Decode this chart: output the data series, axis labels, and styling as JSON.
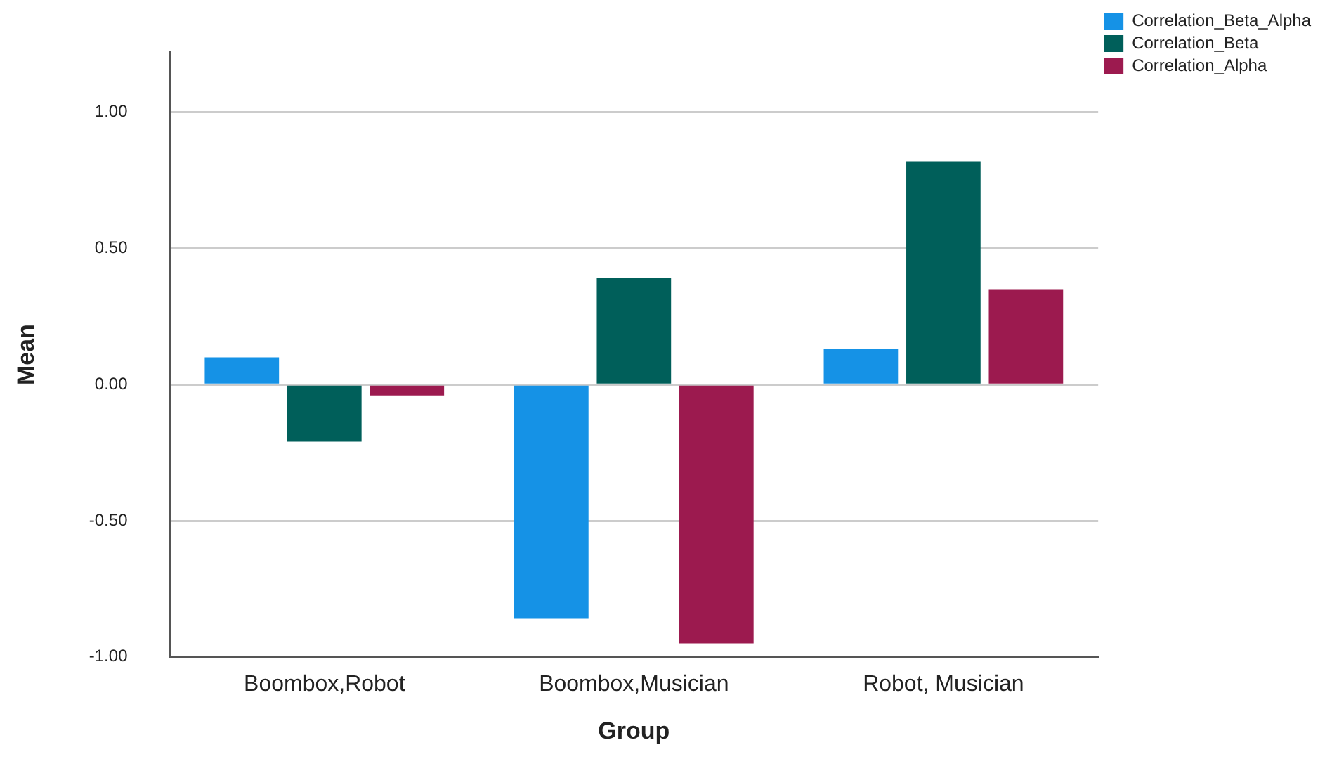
{
  "chart_data": {
    "type": "bar",
    "xlabel": "Group",
    "ylabel": "Mean",
    "categories": [
      "Boombox,Robot",
      "Boombox,Musician",
      "Robot, Musician"
    ],
    "series": [
      {
        "name": "Correlation_Beta_Alpha",
        "color": "#1592e6",
        "values": [
          0.1,
          -0.86,
          0.13
        ]
      },
      {
        "name": "Correlation_Beta",
        "color": "#005f5a",
        "values": [
          -0.21,
          0.39,
          0.82
        ]
      },
      {
        "name": "Correlation_Alpha",
        "color": "#9c1a4f",
        "values": [
          -0.04,
          -0.95,
          0.35
        ]
      }
    ],
    "ylim": [
      -1,
      1.22
    ],
    "yticks": [
      {
        "value": -1,
        "label": "-1.00"
      },
      {
        "value": -0.5,
        "label": "-0.50"
      },
      {
        "value": 0,
        "label": "0.00"
      },
      {
        "value": 0.5,
        "label": "0.50"
      },
      {
        "value": 1,
        "label": "1.00"
      }
    ],
    "grid": "y",
    "legend": "top right"
  }
}
